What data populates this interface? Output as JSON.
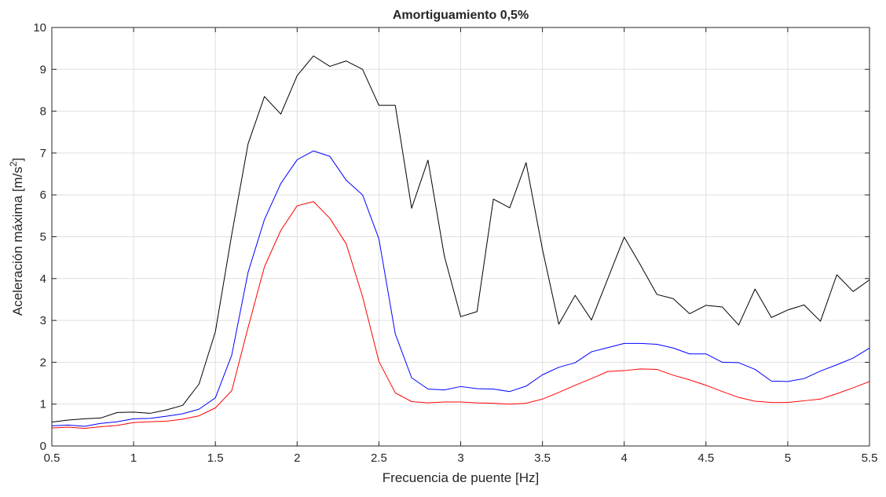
{
  "chart_data": {
    "type": "line",
    "title": "Amortiguamiento 0,5%",
    "xlabel": "Frecuencia de puente [Hz]",
    "ylabel_main": "Aceleración máxima [m/s",
    "ylabel_sup": "2",
    "ylabel_tail": "]",
    "xlim": [
      0.5,
      5.5
    ],
    "ylim": [
      0,
      10
    ],
    "grid": true,
    "xticks": [
      0.5,
      1,
      1.5,
      2,
      2.5,
      3,
      3.5,
      4,
      4.5,
      5,
      5.5
    ],
    "xtick_labels": [
      "0.5",
      "1",
      "1.5",
      "2",
      "2.5",
      "3",
      "3.5",
      "4",
      "4.5",
      "5",
      "5.5"
    ],
    "yticks": [
      0,
      1,
      2,
      3,
      4,
      5,
      6,
      7,
      8,
      9,
      10
    ],
    "ytick_labels": [
      "0",
      "1",
      "2",
      "3",
      "4",
      "5",
      "6",
      "7",
      "8",
      "9",
      "10"
    ],
    "x": [
      0.5,
      0.6,
      0.7,
      0.8,
      0.9,
      1.0,
      1.1,
      1.2,
      1.3,
      1.4,
      1.5,
      1.6,
      1.7,
      1.8,
      1.9,
      2.0,
      2.1,
      2.2,
      2.3,
      2.4,
      2.5,
      2.6,
      2.7,
      2.8,
      2.9,
      3.0,
      3.1,
      3.2,
      3.3,
      3.4,
      3.5,
      3.6,
      3.7,
      3.8,
      3.9,
      4.0,
      4.1,
      4.2,
      4.3,
      4.4,
      4.5,
      4.6,
      4.7,
      4.8,
      4.9,
      5.0,
      5.1,
      5.2,
      5.3,
      5.4,
      5.5
    ],
    "series": [
      {
        "color": "#000000",
        "values": [
          0.57,
          0.62,
          0.65,
          0.67,
          0.8,
          0.81,
          0.78,
          0.86,
          0.97,
          1.48,
          2.73,
          5.05,
          7.22,
          8.35,
          7.93,
          8.85,
          9.32,
          9.07,
          9.2,
          9.0,
          8.14,
          8.14,
          5.68,
          6.83,
          4.54,
          3.09,
          3.21,
          5.9,
          5.69,
          6.77,
          4.7,
          2.91,
          3.6,
          3.01,
          4.0,
          4.99,
          4.32,
          3.62,
          3.52,
          3.16,
          3.36,
          3.32,
          2.89,
          3.75,
          3.07,
          3.25,
          3.37,
          2.98,
          4.09,
          3.69,
          3.97
        ]
      },
      {
        "color": "#0000ff",
        "values": [
          0.48,
          0.5,
          0.47,
          0.54,
          0.58,
          0.65,
          0.66,
          0.71,
          0.77,
          0.88,
          1.15,
          2.17,
          4.15,
          5.41,
          6.27,
          6.84,
          7.05,
          6.92,
          6.35,
          6.0,
          4.95,
          2.68,
          1.63,
          1.36,
          1.34,
          1.42,
          1.37,
          1.36,
          1.3,
          1.43,
          1.7,
          1.88,
          1.99,
          2.25,
          2.35,
          2.45,
          2.45,
          2.43,
          2.34,
          2.2,
          2.2,
          2.0,
          1.99,
          1.83,
          1.55,
          1.54,
          1.61,
          1.79,
          1.94,
          2.1,
          2.34
        ]
      },
      {
        "color": "#ff0000",
        "values": [
          0.43,
          0.45,
          0.42,
          0.46,
          0.49,
          0.56,
          0.58,
          0.59,
          0.64,
          0.72,
          0.91,
          1.32,
          2.83,
          4.28,
          5.15,
          5.74,
          5.84,
          5.44,
          4.83,
          3.57,
          2.02,
          1.27,
          1.06,
          1.03,
          1.05,
          1.05,
          1.03,
          1.02,
          1.0,
          1.02,
          1.12,
          1.28,
          1.45,
          1.61,
          1.78,
          1.8,
          1.84,
          1.83,
          1.69,
          1.58,
          1.45,
          1.3,
          1.16,
          1.07,
          1.04,
          1.04,
          1.08,
          1.12,
          1.25,
          1.39,
          1.54
        ]
      }
    ]
  }
}
